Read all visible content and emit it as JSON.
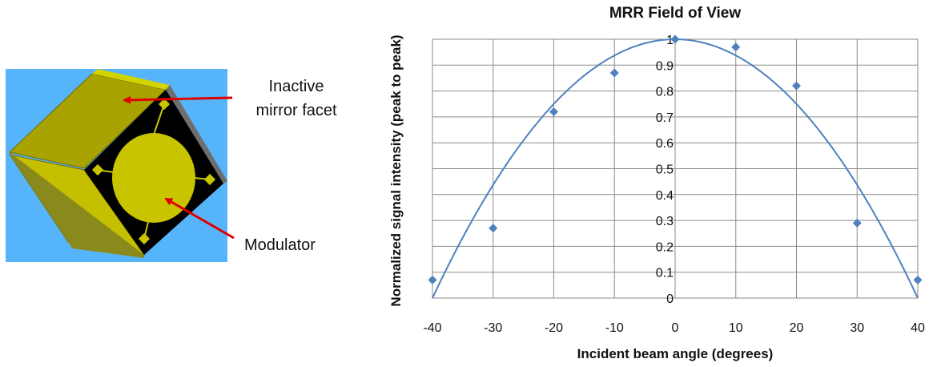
{
  "illustration": {
    "labels": {
      "facet": [
        "Inactive",
        "mirror facet"
      ],
      "modulator": "Modulator"
    },
    "colors": {
      "background": "#56b4fa",
      "facet_light": "#d3d300",
      "facet_mid": "#a8a300",
      "facet_dark": "#8a8a1c",
      "modulator": "#c8c400",
      "mount": "#000000",
      "arrow": "#e00000"
    }
  },
  "chart_data": {
    "type": "scatter",
    "title": "MRR Field of View",
    "xlabel": "Incident beam angle (degrees)",
    "ylabel": "Normalized signal intensity (peak to peak)",
    "xlim": [
      -40,
      40
    ],
    "ylim": [
      0,
      1
    ],
    "x_ticks": [
      -40,
      -30,
      -20,
      -10,
      0,
      10,
      20,
      30,
      40
    ],
    "y_ticks": [
      0,
      0.1,
      0.2,
      0.3,
      0.4,
      0.5,
      0.6,
      0.7,
      0.8,
      0.9,
      1
    ],
    "grid": true,
    "series": [
      {
        "marker": "diamond",
        "color": "#4f81bd",
        "x": [
          -40,
          -30,
          -20,
          -10,
          0,
          10,
          20,
          30,
          40
        ],
        "y": [
          0.07,
          0.27,
          0.72,
          0.87,
          1.0,
          0.97,
          0.82,
          0.29,
          0.07
        ]
      }
    ],
    "trendline": {
      "kind": "quadratic",
      "color": "#4f81bd",
      "coefficients": [
        1.0,
        0.0,
        -0.000625
      ],
      "x_range": [
        -40,
        40
      ]
    }
  }
}
